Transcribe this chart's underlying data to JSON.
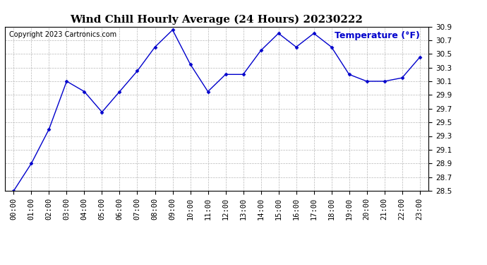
{
  "title": "Wind Chill Hourly Average (24 Hours) 20230222",
  "ylabel": "Temperature (°F)",
  "copyright_text": "Copyright 2023 Cartronics.com",
  "hours": [
    "00:00",
    "01:00",
    "02:00",
    "03:00",
    "04:00",
    "05:00",
    "06:00",
    "07:00",
    "08:00",
    "09:00",
    "10:00",
    "11:00",
    "12:00",
    "13:00",
    "14:00",
    "15:00",
    "16:00",
    "17:00",
    "18:00",
    "19:00",
    "20:00",
    "21:00",
    "22:00",
    "23:00"
  ],
  "values": [
    28.5,
    28.9,
    29.4,
    30.1,
    29.95,
    29.65,
    29.95,
    30.25,
    30.6,
    30.85,
    30.35,
    29.95,
    30.2,
    30.2,
    30.55,
    30.8,
    30.6,
    30.8,
    30.6,
    30.2,
    30.1,
    30.1,
    30.15,
    30.45
  ],
  "ylim_min": 28.5,
  "ylim_max": 30.9,
  "yticks": [
    28.5,
    28.7,
    28.9,
    29.1,
    29.3,
    29.5,
    29.7,
    29.9,
    30.1,
    30.3,
    30.5,
    30.7,
    30.9
  ],
  "line_color": "#0000cc",
  "marker_color": "#0000cc",
  "grid_color": "#b0b0b0",
  "background_color": "#ffffff",
  "title_color": "#000000",
  "ylabel_color": "#0000cc",
  "copyright_color": "#000000",
  "title_fontsize": 11,
  "ylabel_fontsize": 9,
  "copyright_fontsize": 7,
  "tick_fontsize": 7.5
}
